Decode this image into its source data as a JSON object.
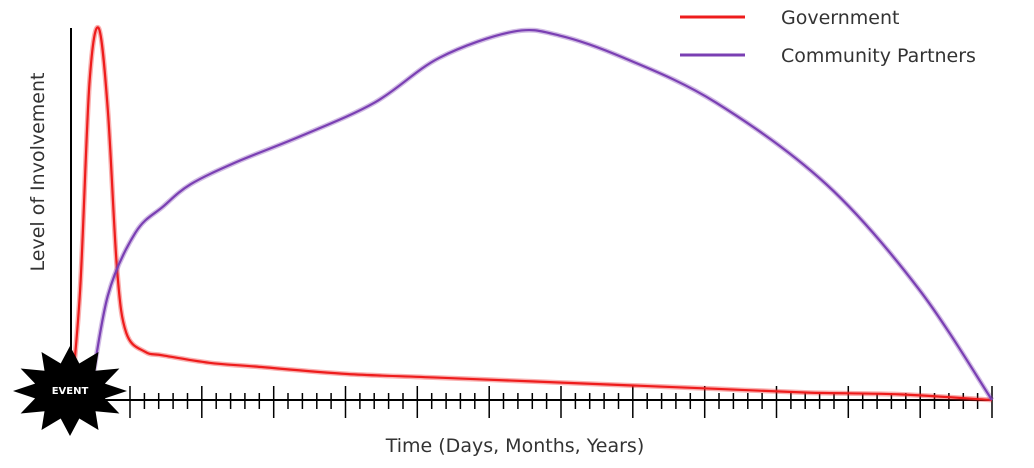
{
  "chart_data": {
    "type": "line",
    "title": "",
    "xlabel": "Time (Days, Months, Years)",
    "ylabel": "Level of Involvement",
    "xlim": [
      0,
      100
    ],
    "ylim": [
      0,
      100
    ],
    "grid": false,
    "legend_position": "top-right",
    "event_marker": {
      "label": "EVENT",
      "x": 0
    },
    "series": [
      {
        "name": "Government",
        "color": "#ee1c1c",
        "x": [
          0,
          1,
          2,
          3,
          4,
          5,
          6,
          8,
          10,
          15,
          20,
          30,
          40,
          50,
          60,
          70,
          80,
          90,
          100
        ],
        "y": [
          0,
          30,
          85,
          100,
          78,
          35,
          18,
          13,
          12,
          10,
          9,
          7,
          6,
          5,
          4,
          3,
          2,
          1.5,
          0
        ]
      },
      {
        "name": "Community Partners",
        "color": "#7a3fb3",
        "x": [
          2,
          4,
          7,
          10,
          13,
          18,
          25,
          33,
          40,
          48,
          53,
          60,
          70,
          82,
          92,
          100
        ],
        "y": [
          0,
          28,
          45,
          52,
          58,
          64,
          71,
          80,
          92,
          99,
          98,
          92,
          80,
          58,
          30,
          0
        ]
      }
    ],
    "x_ticks": {
      "count": 60,
      "major_every": 5
    }
  }
}
